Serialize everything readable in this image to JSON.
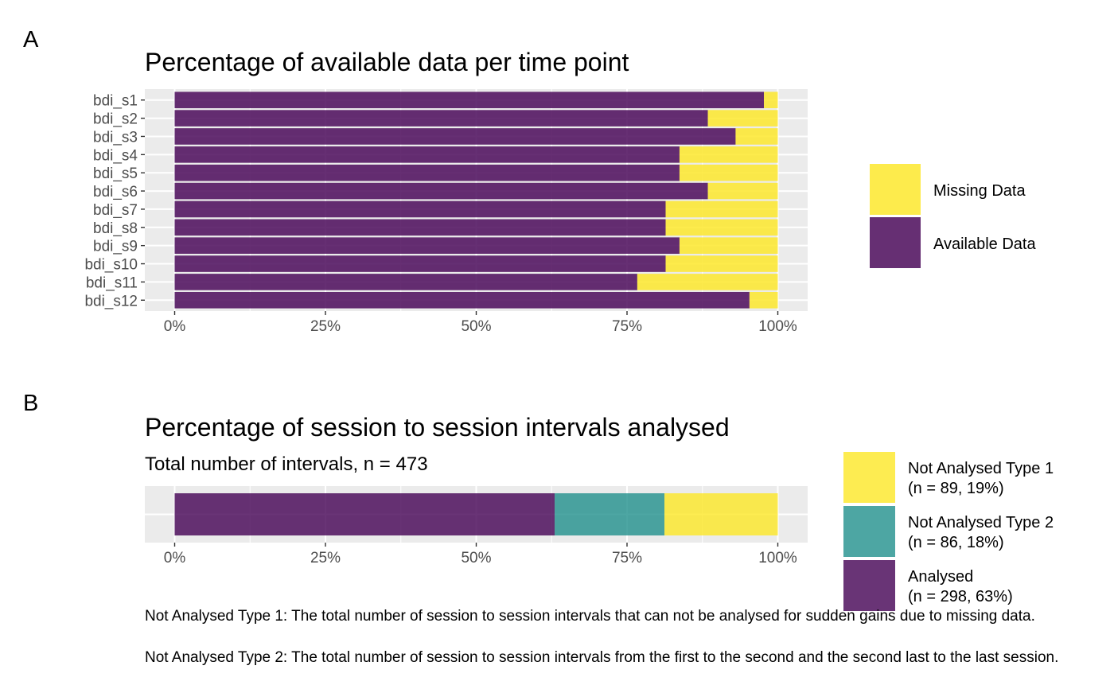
{
  "colors": {
    "available": "#440154",
    "missing": "#FDE725",
    "type2": "#21908C",
    "panel_bg": "#EBEBEB",
    "grid": "#FFFFFF"
  },
  "panel_a": {
    "tag": "A",
    "legend": [
      {
        "label": "Missing Data",
        "color_key": "missing"
      },
      {
        "label": "Available Data",
        "color_key": "available"
      }
    ],
    "chart_data": {
      "type": "bar",
      "orientation": "horizontal",
      "stacked": true,
      "title": "Percentage of available data per time point",
      "categories": [
        "bdi_s1",
        "bdi_s2",
        "bdi_s3",
        "bdi_s4",
        "bdi_s5",
        "bdi_s6",
        "bdi_s7",
        "bdi_s8",
        "bdi_s9",
        "bdi_s10",
        "bdi_s11",
        "bdi_s12"
      ],
      "series": [
        {
          "name": "Available Data",
          "values": [
            97.7,
            88.4,
            93.0,
            83.7,
            83.7,
            88.4,
            81.4,
            81.4,
            83.7,
            81.4,
            76.7,
            95.3
          ]
        },
        {
          "name": "Missing Data",
          "values": [
            2.3,
            11.6,
            7.0,
            16.3,
            16.3,
            11.6,
            18.6,
            18.6,
            16.3,
            18.6,
            23.3,
            4.7
          ]
        }
      ],
      "xlim": [
        0,
        100
      ],
      "xticks": [
        "0%",
        "25%",
        "50%",
        "75%",
        "100%"
      ],
      "xlabel": "",
      "ylabel": "",
      "grid": true,
      "legend_position": "right"
    }
  },
  "panel_b": {
    "tag": "B",
    "legend": [
      {
        "label": "Not Analysed Type 1",
        "sub": "(n = 89, 19%)",
        "color_key": "missing"
      },
      {
        "label": "Not Analysed Type 2",
        "sub": "(n = 86, 18%)",
        "color_key": "type2"
      },
      {
        "label": "Analysed",
        "sub": "(n = 298, 63%)",
        "color_key": "available"
      }
    ],
    "chart_data": {
      "type": "bar",
      "orientation": "horizontal",
      "stacked": true,
      "title": "Percentage of session to session intervals analysed",
      "subtitle": "Total number of intervals, n = 473",
      "series": [
        {
          "name": "Analysed",
          "values": [
            63.0
          ]
        },
        {
          "name": "Not Analysed Type 2",
          "values": [
            18.2
          ]
        },
        {
          "name": "Not Analysed Type 1",
          "values": [
            18.8
          ]
        }
      ],
      "xlim": [
        0,
        100
      ],
      "xticks": [
        "0%",
        "25%",
        "50%",
        "75%",
        "100%"
      ],
      "xlabel": "",
      "ylabel": "",
      "grid": true,
      "legend_position": "right"
    },
    "captions": [
      "Not Analysed Type 1: The total number of session to session intervals that can not be analysed for sudden gains due to missing data.",
      "Not Analysed Type 2: The total number of session to session intervals from the first to the second and the second last to the last session."
    ]
  }
}
